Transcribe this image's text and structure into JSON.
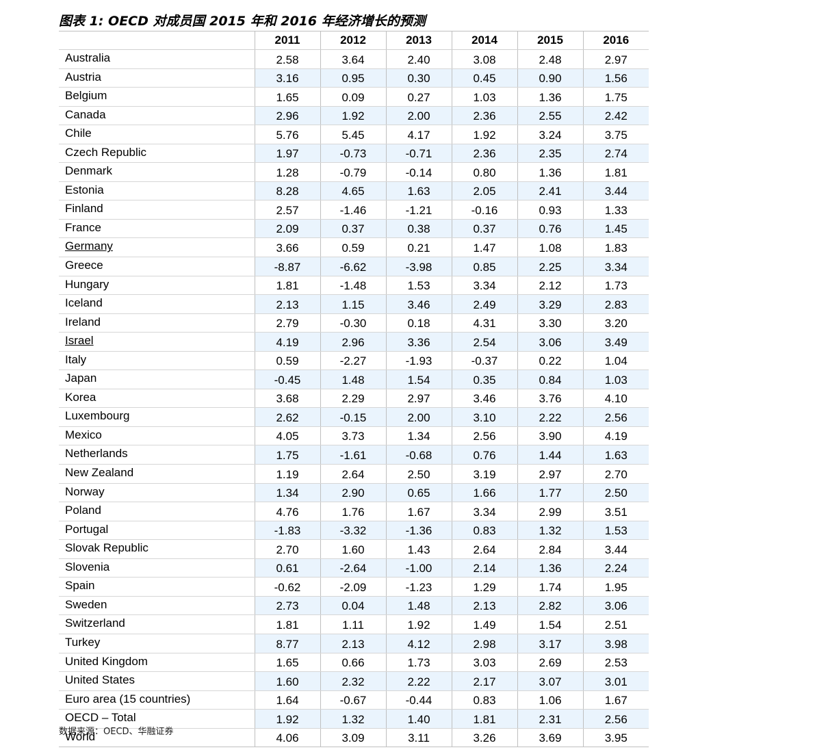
{
  "title": "图表 1:  OECD 对成员国 2015 年和 2016 年经济增长的预测",
  "source": "数据来源：OECD、华融证券",
  "columns": [
    "2011",
    "2012",
    "2013",
    "2014",
    "2015",
    "2016"
  ],
  "rows": [
    {
      "country": "Australia",
      "values": [
        "2.58",
        "3.64",
        "2.40",
        "3.08",
        "2.48",
        "2.97"
      ]
    },
    {
      "country": "Austria",
      "values": [
        "3.16",
        "0.95",
        "0.30",
        "0.45",
        "0.90",
        "1.56"
      ]
    },
    {
      "country": "Belgium",
      "values": [
        "1.65",
        "0.09",
        "0.27",
        "1.03",
        "1.36",
        "1.75"
      ]
    },
    {
      "country": "Canada",
      "values": [
        "2.96",
        "1.92",
        "2.00",
        "2.36",
        "2.55",
        "2.42"
      ]
    },
    {
      "country": "Chile",
      "values": [
        "5.76",
        "5.45",
        "4.17",
        "1.92",
        "3.24",
        "3.75"
      ]
    },
    {
      "country": "Czech Republic",
      "values": [
        "1.97",
        "-0.73",
        "-0.71",
        "2.36",
        "2.35",
        "2.74"
      ]
    },
    {
      "country": "Denmark",
      "values": [
        "1.28",
        "-0.79",
        "-0.14",
        "0.80",
        "1.36",
        "1.81"
      ]
    },
    {
      "country": "Estonia",
      "values": [
        "8.28",
        "4.65",
        "1.63",
        "2.05",
        "2.41",
        "3.44"
      ]
    },
    {
      "country": "Finland",
      "values": [
        "2.57",
        "-1.46",
        "-1.21",
        "-0.16",
        "0.93",
        "1.33"
      ]
    },
    {
      "country": "France",
      "values": [
        "2.09",
        "0.37",
        "0.38",
        "0.37",
        "0.76",
        "1.45"
      ]
    },
    {
      "country": "Germany",
      "values": [
        "3.66",
        "0.59",
        "0.21",
        "1.47",
        "1.08",
        "1.83"
      ]
    },
    {
      "country": "Greece",
      "values": [
        "-8.87",
        "-6.62",
        "-3.98",
        "0.85",
        "2.25",
        "3.34"
      ]
    },
    {
      "country": "Hungary",
      "values": [
        "1.81",
        "-1.48",
        "1.53",
        "3.34",
        "2.12",
        "1.73"
      ]
    },
    {
      "country": "Iceland",
      "values": [
        "2.13",
        "1.15",
        "3.46",
        "2.49",
        "3.29",
        "2.83"
      ]
    },
    {
      "country": "Ireland",
      "values": [
        "2.79",
        "-0.30",
        "0.18",
        "4.31",
        "3.30",
        "3.20"
      ]
    },
    {
      "country": "Israel",
      "values": [
        "4.19",
        "2.96",
        "3.36",
        "2.54",
        "3.06",
        "3.49"
      ]
    },
    {
      "country": "Italy",
      "values": [
        "0.59",
        "-2.27",
        "-1.93",
        "-0.37",
        "0.22",
        "1.04"
      ]
    },
    {
      "country": "Japan",
      "values": [
        "-0.45",
        "1.48",
        "1.54",
        "0.35",
        "0.84",
        "1.03"
      ]
    },
    {
      "country": "Korea",
      "values": [
        "3.68",
        "2.29",
        "2.97",
        "3.46",
        "3.76",
        "4.10"
      ]
    },
    {
      "country": "Luxembourg",
      "values": [
        "2.62",
        "-0.15",
        "2.00",
        "3.10",
        "2.22",
        "2.56"
      ]
    },
    {
      "country": "Mexico",
      "values": [
        "4.05",
        "3.73",
        "1.34",
        "2.56",
        "3.90",
        "4.19"
      ]
    },
    {
      "country": "Netherlands",
      "values": [
        "1.75",
        "-1.61",
        "-0.68",
        "0.76",
        "1.44",
        "1.63"
      ]
    },
    {
      "country": "New Zealand",
      "values": [
        "1.19",
        "2.64",
        "2.50",
        "3.19",
        "2.97",
        "2.70"
      ]
    },
    {
      "country": "Norway",
      "values": [
        "1.34",
        "2.90",
        "0.65",
        "1.66",
        "1.77",
        "2.50"
      ]
    },
    {
      "country": "Poland",
      "values": [
        "4.76",
        "1.76",
        "1.67",
        "3.34",
        "2.99",
        "3.51"
      ]
    },
    {
      "country": "Portugal",
      "values": [
        "-1.83",
        "-3.32",
        "-1.36",
        "0.83",
        "1.32",
        "1.53"
      ]
    },
    {
      "country": "Slovak Republic",
      "values": [
        "2.70",
        "1.60",
        "1.43",
        "2.64",
        "2.84",
        "3.44"
      ]
    },
    {
      "country": "Slovenia",
      "values": [
        "0.61",
        "-2.64",
        "-1.00",
        "2.14",
        "1.36",
        "2.24"
      ]
    },
    {
      "country": "Spain",
      "values": [
        "-0.62",
        "-2.09",
        "-1.23",
        "1.29",
        "1.74",
        "1.95"
      ]
    },
    {
      "country": "Sweden",
      "values": [
        "2.73",
        "0.04",
        "1.48",
        "2.13",
        "2.82",
        "3.06"
      ]
    },
    {
      "country": "Switzerland",
      "values": [
        "1.81",
        "1.11",
        "1.92",
        "1.49",
        "1.54",
        "2.51"
      ]
    },
    {
      "country": "Turkey",
      "values": [
        "8.77",
        "2.13",
        "4.12",
        "2.98",
        "3.17",
        "3.98"
      ]
    },
    {
      "country": "United Kingdom",
      "values": [
        "1.65",
        "0.66",
        "1.73",
        "3.03",
        "2.69",
        "2.53"
      ]
    },
    {
      "country": "United States",
      "values": [
        "1.60",
        "2.32",
        "2.22",
        "2.17",
        "3.07",
        "3.01"
      ]
    },
    {
      "country": "Euro area (15 countries)",
      "values": [
        "1.64",
        "-0.67",
        "-0.44",
        "0.83",
        "1.06",
        "1.67"
      ]
    },
    {
      "country": "OECD – Total",
      "values": [
        "1.92",
        "1.32",
        "1.40",
        "1.81",
        "2.31",
        "2.56"
      ]
    },
    {
      "country": "World",
      "values": [
        "4.06",
        "3.09",
        "3.11",
        "3.26",
        "3.69",
        "3.95"
      ]
    }
  ],
  "underlined_countries": [
    "Germany",
    "Israel"
  ],
  "colors": {
    "shaded_row": "#eaf4fd",
    "grid_line": "#bfbfbf"
  }
}
